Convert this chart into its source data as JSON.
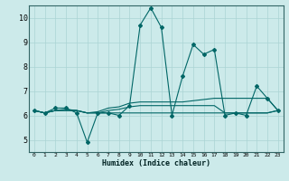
{
  "xlabel": "Humidex (Indice chaleur)",
  "bg_color": "#cceaea",
  "grid_color": "#aad4d4",
  "line_color": "#006666",
  "axis_bar_color": "#336666",
  "xlim": [
    -0.5,
    23.5
  ],
  "ylim": [
    4.5,
    10.5
  ],
  "xticks": [
    0,
    1,
    2,
    3,
    4,
    5,
    6,
    7,
    8,
    9,
    10,
    11,
    12,
    13,
    14,
    15,
    16,
    17,
    18,
    19,
    20,
    21,
    22,
    23
  ],
  "yticks": [
    5,
    6,
    7,
    8,
    9,
    10
  ],
  "main_series": [
    6.2,
    6.1,
    6.3,
    6.3,
    6.1,
    4.9,
    6.1,
    6.1,
    6.0,
    6.4,
    9.7,
    10.4,
    9.6,
    6.0,
    7.6,
    8.9,
    8.5,
    8.7,
    6.0,
    6.1,
    6.0,
    7.2,
    6.7,
    6.2
  ],
  "flat1": [
    6.2,
    6.1,
    6.2,
    6.25,
    6.2,
    6.1,
    6.15,
    6.3,
    6.35,
    6.5,
    6.55,
    6.55,
    6.55,
    6.55,
    6.55,
    6.6,
    6.65,
    6.7,
    6.7,
    6.7,
    6.7,
    6.7,
    6.7,
    6.2
  ],
  "flat2": [
    6.2,
    6.1,
    6.2,
    6.2,
    6.2,
    6.1,
    6.1,
    6.2,
    6.25,
    6.35,
    6.4,
    6.4,
    6.4,
    6.4,
    6.4,
    6.4,
    6.4,
    6.4,
    6.1,
    6.1,
    6.1,
    6.1,
    6.1,
    6.2
  ],
  "flat3": [
    6.2,
    6.1,
    6.2,
    6.2,
    6.2,
    6.1,
    6.1,
    6.1,
    6.1,
    6.1,
    6.1,
    6.1,
    6.1,
    6.1,
    6.1,
    6.1,
    6.1,
    6.1,
    6.1,
    6.1,
    6.1,
    6.1,
    6.1,
    6.2
  ]
}
